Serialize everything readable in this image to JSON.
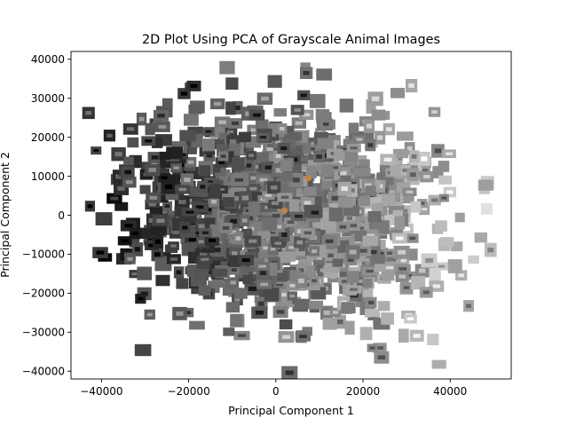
{
  "chart_data": {
    "type": "scatter",
    "title": "2D Plot Using PCA of Grayscale Animal Images",
    "xlabel": "Principal Component 1",
    "ylabel": "Principal Component 2",
    "xlim": [
      -47000,
      54000
    ],
    "ylim": [
      -42000,
      42000
    ],
    "xticks": [
      -40000,
      -20000,
      0,
      20000,
      40000
    ],
    "yticks": [
      -40000,
      -30000,
      -20000,
      -10000,
      0,
      10000,
      20000,
      30000,
      40000
    ],
    "xtick_labels": [
      "−40000",
      "−20000",
      "0",
      "20000",
      "40000"
    ],
    "ytick_labels": [
      "−40000",
      "−30000",
      "−20000",
      "−10000",
      "0",
      "10000",
      "20000",
      "30000",
      "40000"
    ],
    "grid": false,
    "marker": "grayscale image thumbnails",
    "highlighted_points": [
      {
        "x": 2000,
        "y": 1200,
        "color": "#c8813a"
      },
      {
        "x": 7500,
        "y": 9500,
        "color": "#c8813a"
      }
    ]
  }
}
